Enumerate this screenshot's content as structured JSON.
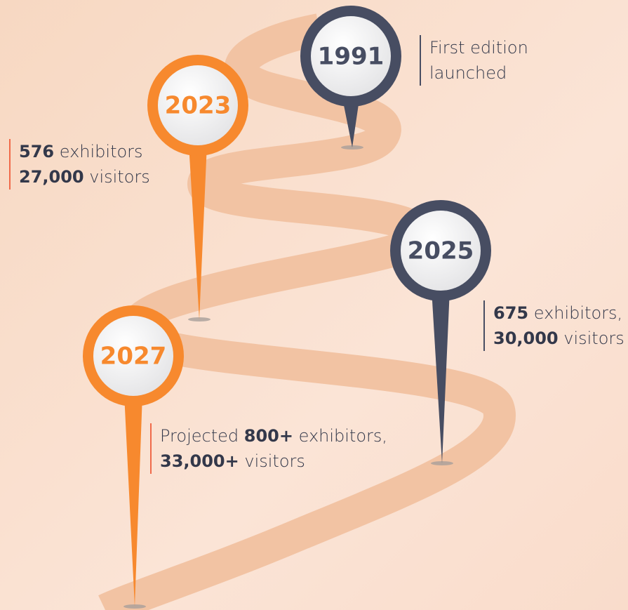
{
  "milestones": [
    {
      "year": "1991",
      "color": "#474d62",
      "lines": [
        [
          {
            "text": "First edition",
            "bold": false
          }
        ],
        [
          {
            "text": "launched",
            "bold": false
          }
        ]
      ]
    },
    {
      "year": "2023",
      "color": "#f7892e",
      "lines": [
        [
          {
            "text": "576",
            "bold": true
          },
          {
            "text": " exhibitors",
            "bold": false
          }
        ],
        [
          {
            "text": "27,000",
            "bold": true
          },
          {
            "text": " visitors",
            "bold": false
          }
        ]
      ]
    },
    {
      "year": "2025",
      "color": "#474d62",
      "lines": [
        [
          {
            "text": "675",
            "bold": true
          },
          {
            "text": " exhibitors,",
            "bold": false
          }
        ],
        [
          {
            "text": "30,000",
            "bold": true
          },
          {
            "text": " visitors",
            "bold": false
          }
        ]
      ]
    },
    {
      "year": "2027",
      "color": "#f7892e",
      "lines": [
        [
          {
            "text": "Projected ",
            "bold": false
          },
          {
            "text": "800+",
            "bold": true
          },
          {
            "text": " exhibitors,",
            "bold": false
          }
        ],
        [
          {
            "text": "33,000+",
            "bold": true
          },
          {
            "text": " visitors",
            "bold": false
          }
        ]
      ]
    }
  ]
}
